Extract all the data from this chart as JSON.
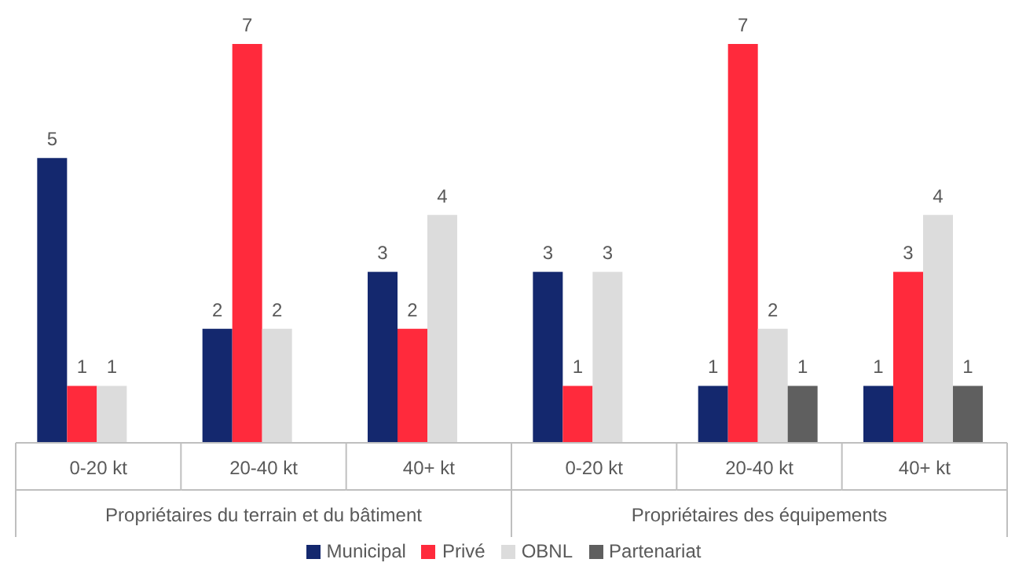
{
  "chart_data": {
    "type": "bar",
    "categories": [
      "0-20 kt",
      "20-40 kt",
      "40+ kt",
      "0-20 kt",
      "20-40 kt",
      "40+ kt"
    ],
    "series": [
      {
        "name": "Municipal",
        "color": "#14286e",
        "values": [
          5,
          2,
          3,
          3,
          1,
          1
        ]
      },
      {
        "name": "Privé",
        "color": "#ff2a3c",
        "values": [
          1,
          7,
          2,
          1,
          7,
          3
        ]
      },
      {
        "name": "OBNL",
        "color": "#dcdcdc",
        "values": [
          1,
          2,
          4,
          3,
          2,
          4
        ]
      },
      {
        "name": "Partenariat",
        "color": "#5f5f5f",
        "values": [
          null,
          null,
          null,
          null,
          1,
          1
        ]
      }
    ],
    "data_labels": true,
    "grid": false,
    "legend": "bottom",
    "annotations": [
      "Propriétaires du terrain et du bâtiment",
      "Propriétaires des équipements"
    ]
  }
}
